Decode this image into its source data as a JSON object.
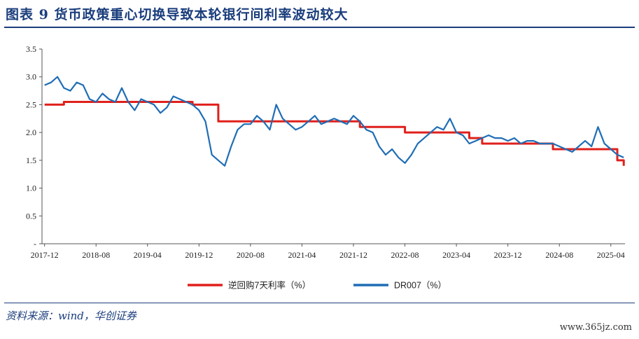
{
  "header": {
    "title": "图表 9   货币政策重心切换导致本轮银行间利率波动较大"
  },
  "footer": {
    "source": "资料来源：wind，华创证券",
    "watermark": "www.365jz.com"
  },
  "chart_data": {
    "type": "line",
    "title": "",
    "xlabel": "",
    "ylabel": "",
    "ylim": [
      0,
      3.5
    ],
    "y_ticks": [
      "-",
      "0.5",
      "1.0",
      "1.5",
      "2.0",
      "2.5",
      "3.0",
      "3.5"
    ],
    "x_ticks": [
      "2017-12",
      "2018-08",
      "2019-04",
      "2019-12",
      "2020-08",
      "2021-04",
      "2021-12",
      "2022-08",
      "2023-04",
      "2023-12",
      "2024-08",
      "2025-04"
    ],
    "grid": false,
    "legend_position": "bottom",
    "series": [
      {
        "name": "逆回购7天利率（%）",
        "color": "#e0201b",
        "style": "step",
        "x": [
          "2017-12",
          "2018-03",
          "2019-11",
          "2020-03",
          "2022-01",
          "2022-08",
          "2023-06",
          "2023-08",
          "2024-07",
          "2025-05",
          "2025-06"
        ],
        "values": [
          2.5,
          2.55,
          2.5,
          2.2,
          2.1,
          2.0,
          1.9,
          1.8,
          1.7,
          1.5,
          1.4
        ]
      },
      {
        "name": "DR007（%）",
        "color": "#1f6db5",
        "style": "line",
        "x": [
          "2017-12",
          "2018-01",
          "2018-02",
          "2018-03",
          "2018-04",
          "2018-05",
          "2018-06",
          "2018-07",
          "2018-08",
          "2018-09",
          "2018-10",
          "2018-11",
          "2018-12",
          "2019-01",
          "2019-02",
          "2019-03",
          "2019-04",
          "2019-05",
          "2019-06",
          "2019-07",
          "2019-08",
          "2019-09",
          "2019-10",
          "2019-11",
          "2019-12",
          "2020-01",
          "2020-02",
          "2020-03",
          "2020-04",
          "2020-05",
          "2020-06",
          "2020-07",
          "2020-08",
          "2020-09",
          "2020-10",
          "2020-11",
          "2020-12",
          "2021-01",
          "2021-02",
          "2021-03",
          "2021-04",
          "2021-05",
          "2021-06",
          "2021-07",
          "2021-08",
          "2021-09",
          "2021-10",
          "2021-11",
          "2021-12",
          "2022-01",
          "2022-02",
          "2022-03",
          "2022-04",
          "2022-05",
          "2022-06",
          "2022-07",
          "2022-08",
          "2022-09",
          "2022-10",
          "2022-11",
          "2022-12",
          "2023-01",
          "2023-02",
          "2023-03",
          "2023-04",
          "2023-05",
          "2023-06",
          "2023-07",
          "2023-08",
          "2023-09",
          "2023-10",
          "2023-11",
          "2023-12",
          "2024-01",
          "2024-02",
          "2024-03",
          "2024-04",
          "2024-05",
          "2024-06",
          "2024-07",
          "2024-08",
          "2024-09",
          "2024-10",
          "2024-11",
          "2024-12",
          "2025-01",
          "2025-02",
          "2025-03",
          "2025-04",
          "2025-05",
          "2025-06"
        ],
        "values": [
          2.85,
          2.9,
          3.0,
          2.8,
          2.75,
          2.9,
          2.85,
          2.6,
          2.55,
          2.7,
          2.6,
          2.55,
          2.8,
          2.55,
          2.4,
          2.6,
          2.55,
          2.5,
          2.35,
          2.45,
          2.65,
          2.6,
          2.55,
          2.5,
          2.4,
          2.2,
          1.6,
          1.5,
          1.4,
          1.75,
          2.05,
          2.15,
          2.15,
          2.3,
          2.2,
          2.05,
          2.5,
          2.25,
          2.15,
          2.05,
          2.1,
          2.2,
          2.3,
          2.15,
          2.2,
          2.25,
          2.2,
          2.15,
          2.3,
          2.2,
          2.05,
          2.0,
          1.75,
          1.6,
          1.7,
          1.55,
          1.45,
          1.6,
          1.8,
          1.9,
          2.0,
          2.1,
          2.05,
          2.25,
          2.0,
          1.95,
          1.8,
          1.85,
          1.9,
          1.95,
          1.9,
          1.9,
          1.85,
          1.9,
          1.8,
          1.85,
          1.85,
          1.8,
          1.8,
          1.8,
          1.75,
          1.7,
          1.65,
          1.75,
          1.85,
          1.75,
          2.1,
          1.8,
          1.7,
          1.6,
          1.55
        ]
      }
    ]
  }
}
